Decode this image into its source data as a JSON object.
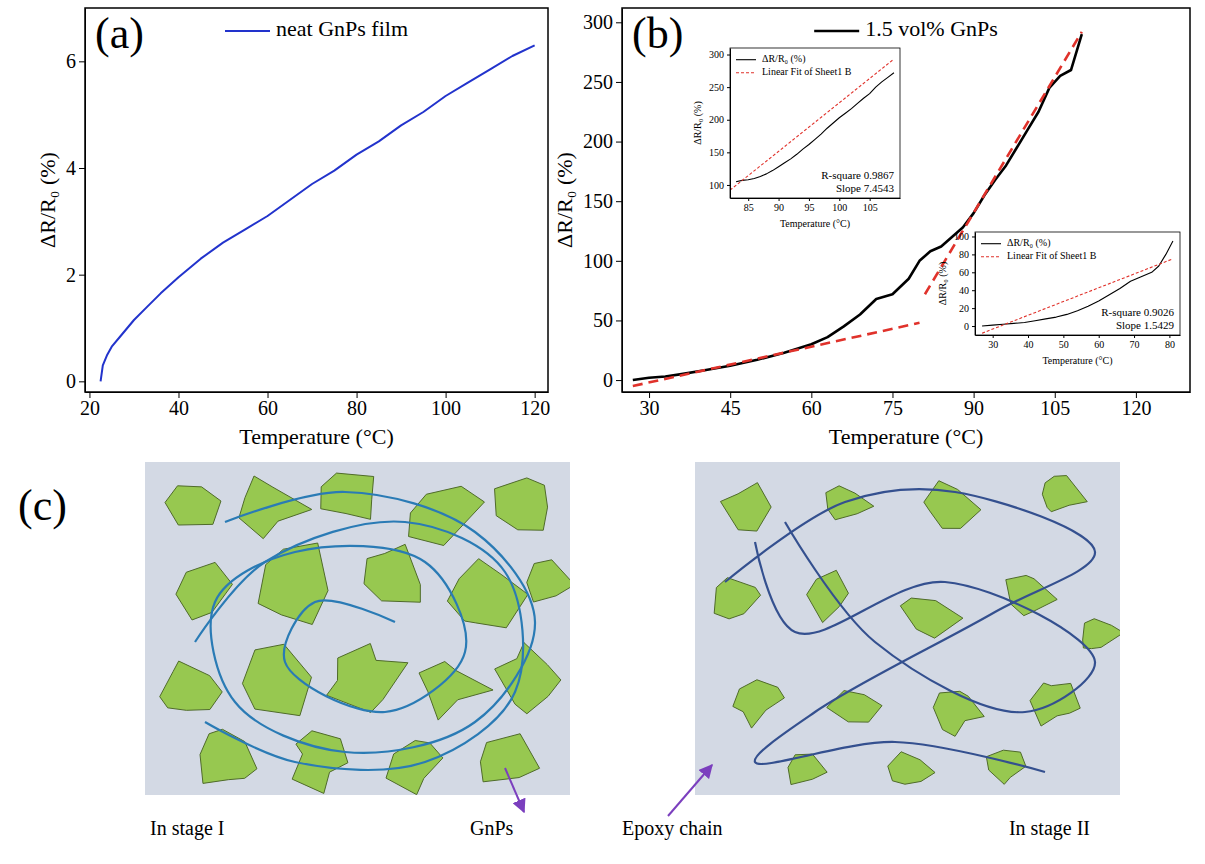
{
  "chart_data": [
    {
      "type": "line",
      "panel": "(a)",
      "x_label": "Temperature (°C)",
      "y_label": "ΔR/R₀ (%)",
      "xlim": [
        19,
        123
      ],
      "xticks": [
        20,
        40,
        60,
        80,
        100,
        120
      ],
      "ylim": [
        -0.2,
        7
      ],
      "yticks": [
        0,
        2,
        4,
        6
      ],
      "legend": "top",
      "series": [
        {
          "name": "neat GnPs film",
          "color": "#2233cc",
          "line_style": "solid",
          "x": [
            22.5,
            23,
            24,
            25,
            27,
            30,
            33,
            36,
            40,
            45,
            50,
            55,
            60,
            65,
            70,
            75,
            80,
            85,
            90,
            95,
            100,
            105,
            110,
            115,
            120
          ],
          "values": [
            0,
            0.3,
            0.5,
            0.65,
            0.85,
            1.15,
            1.4,
            1.65,
            1.95,
            2.3,
            2.6,
            2.85,
            3.1,
            3.4,
            3.7,
            3.95,
            4.25,
            4.5,
            4.8,
            5.05,
            5.35,
            5.6,
            5.85,
            6.1,
            6.3
          ]
        }
      ]
    },
    {
      "type": "line",
      "panel": "(b)",
      "x_label": "Temperature (°C)",
      "y_label": "ΔR/R₀ (%)",
      "xlim": [
        25,
        130
      ],
      "xticks": [
        30,
        45,
        60,
        75,
        90,
        105,
        120
      ],
      "ylim": [
        -10,
        312
      ],
      "yticks": [
        0,
        50,
        100,
        150,
        200,
        250,
        300
      ],
      "legend": "top",
      "series": [
        {
          "name": "1.5 vol% GnPs",
          "color": "#000000",
          "line_style": "solid",
          "x": [
            27,
            30,
            33,
            36,
            40,
            45,
            50,
            55,
            60,
            63,
            66,
            69,
            72,
            75,
            78,
            80,
            82,
            84,
            86,
            88,
            90,
            92,
            94,
            96,
            98,
            100,
            102,
            104,
            106,
            108,
            110
          ],
          "values": [
            0,
            2,
            3,
            5,
            8,
            12,
            17,
            23,
            30,
            36,
            45,
            55,
            68,
            72,
            85,
            100,
            108,
            112,
            120,
            128,
            140,
            155,
            168,
            180,
            195,
            210,
            225,
            245,
            255,
            260,
            290
          ]
        },
        {
          "color": "#e0322b",
          "line_style": "dashed",
          "x": [
            27,
            80
          ],
          "values": [
            -5,
            48
          ]
        },
        {
          "color": "#e0322b",
          "line_style": "dashed",
          "x": [
            81,
            110
          ],
          "values": [
            72,
            292
          ]
        }
      ]
    },
    {
      "type": "line",
      "x_label": "Temperature (°C)",
      "y_label": "ΔR/R₀ (%)",
      "xlim": [
        82,
        110
      ],
      "xticks": [
        85,
        90,
        95,
        100,
        105
      ],
      "ylim": [
        80,
        310
      ],
      "yticks": [
        100,
        150,
        200,
        250,
        300
      ],
      "legend": "top-left",
      "annotations": [
        "R-square 0.9867",
        "Slope 7.4543"
      ],
      "series": [
        {
          "name": "ΔR/R₀ (%)",
          "color": "#000000",
          "line_style": "solid",
          "x": [
            83,
            84,
            85,
            86,
            87,
            88,
            89,
            90,
            91,
            92,
            93,
            94,
            95,
            96,
            97,
            98,
            99,
            100,
            101,
            102,
            103,
            104,
            105,
            106,
            107,
            108,
            109
          ],
          "values": [
            105,
            107,
            108,
            110,
            113,
            117,
            122,
            128,
            134,
            140,
            147,
            155,
            162,
            170,
            178,
            187,
            195,
            203,
            210,
            217,
            225,
            233,
            240,
            250,
            258,
            265,
            272
          ]
        },
        {
          "name": "Linear Fit of Sheet1 B",
          "color": "#e0322b",
          "line_style": "dashed",
          "x": [
            82,
            109
          ],
          "values": [
            92,
            293
          ]
        }
      ]
    },
    {
      "type": "line",
      "x_label": "Temperature (°C)",
      "y_label": "ΔR/R₀ (%)",
      "xlim": [
        25,
        83
      ],
      "xticks": [
        30,
        40,
        50,
        60,
        70,
        80
      ],
      "ylim": [
        -10,
        105
      ],
      "yticks": [
        0,
        20,
        40,
        60,
        80,
        100
      ],
      "legend": "top-left",
      "annotations": [
        "R-square 0.9026",
        "Slope 1.5429"
      ],
      "series": [
        {
          "name": "ΔR/R₀ (%)",
          "color": "#000000",
          "line_style": "solid",
          "x": [
            27,
            30,
            33,
            36,
            39,
            42,
            45,
            48,
            51,
            54,
            57,
            60,
            63,
            66,
            69,
            72,
            75,
            77,
            79,
            81
          ],
          "values": [
            0,
            1,
            2,
            3,
            4,
            6,
            8,
            10,
            13,
            17,
            22,
            28,
            35,
            42,
            50,
            55,
            60,
            67,
            80,
            95
          ]
        },
        {
          "name": "Linear Fit of Sheet1 B",
          "color": "#e0322b",
          "line_style": "dashed",
          "x": [
            27,
            81
          ],
          "values": [
            -8,
            75
          ]
        }
      ]
    }
  ],
  "diagram": {
    "label": "(c)",
    "panels": [
      {
        "caption": "In stage I"
      },
      {
        "caption": "In stage II"
      }
    ],
    "callouts": [
      {
        "text": "GnPs"
      },
      {
        "text": "Epoxy chain"
      }
    ]
  }
}
